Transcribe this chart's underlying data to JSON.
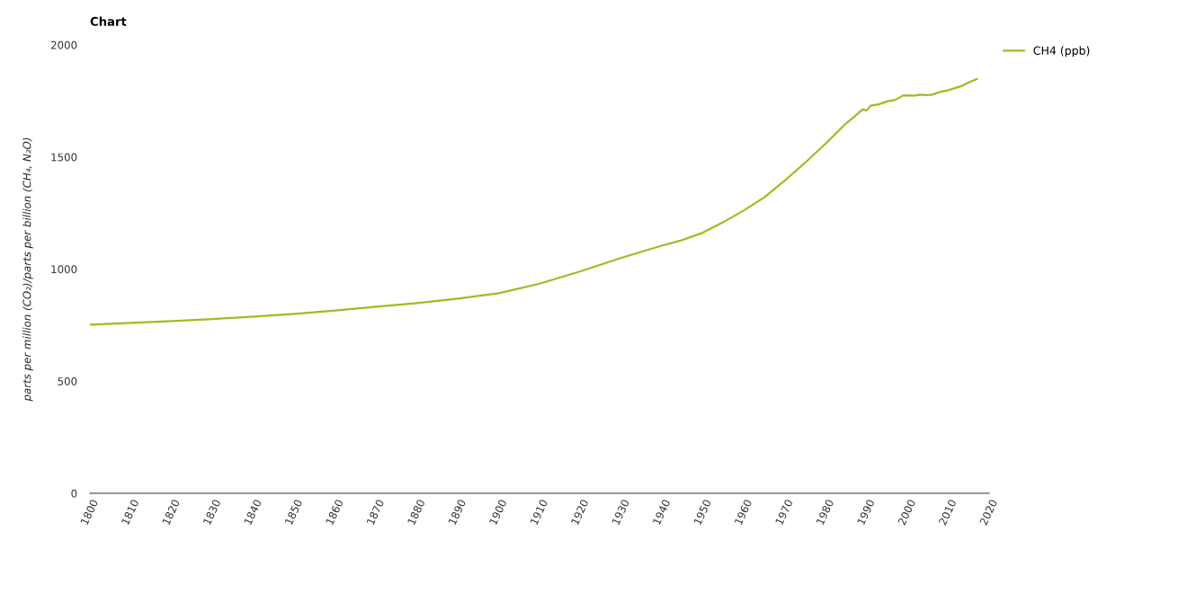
{
  "chart_data": {
    "type": "line",
    "title": "Chart",
    "ylabel": "parts per million (CO₂)/parts per billion (CH₄, N₂O)",
    "series": [
      {
        "name": "CH4 (ppb)",
        "color": "#a8b820",
        "x": [
          1800,
          1810,
          1820,
          1830,
          1840,
          1850,
          1860,
          1870,
          1880,
          1890,
          1900,
          1910,
          1920,
          1930,
          1940,
          1945,
          1950,
          1955,
          1960,
          1965,
          1970,
          1975,
          1980,
          1985,
          1987,
          1989,
          1990,
          1991,
          1993,
          1995,
          1997,
          1999,
          2002,
          2003,
          2005,
          2006,
          2008,
          2010,
          2013,
          2015,
          2017
        ],
        "values": [
          752,
          760,
          768,
          777,
          788,
          800,
          815,
          832,
          848,
          868,
          892,
          935,
          990,
          1050,
          1105,
          1130,
          1163,
          1210,
          1262,
          1320,
          1395,
          1475,
          1560,
          1650,
          1680,
          1712,
          1708,
          1729,
          1735,
          1748,
          1755,
          1775,
          1774,
          1778,
          1776,
          1778,
          1790,
          1798,
          1815,
          1833,
          1848
        ]
      }
    ],
    "xlim": [
      1800,
      2020
    ],
    "xticks": [
      1800,
      1810,
      1820,
      1830,
      1840,
      1850,
      1860,
      1870,
      1880,
      1890,
      1900,
      1910,
      1920,
      1930,
      1940,
      1950,
      1960,
      1970,
      1980,
      1990,
      2000,
      2010,
      2020
    ],
    "ylim": [
      0,
      2000
    ],
    "yticks": [
      0,
      500,
      1000,
      1500,
      2000
    ],
    "grid": false,
    "legend": "top right",
    "marker": "none",
    "line_style": "solid"
  }
}
